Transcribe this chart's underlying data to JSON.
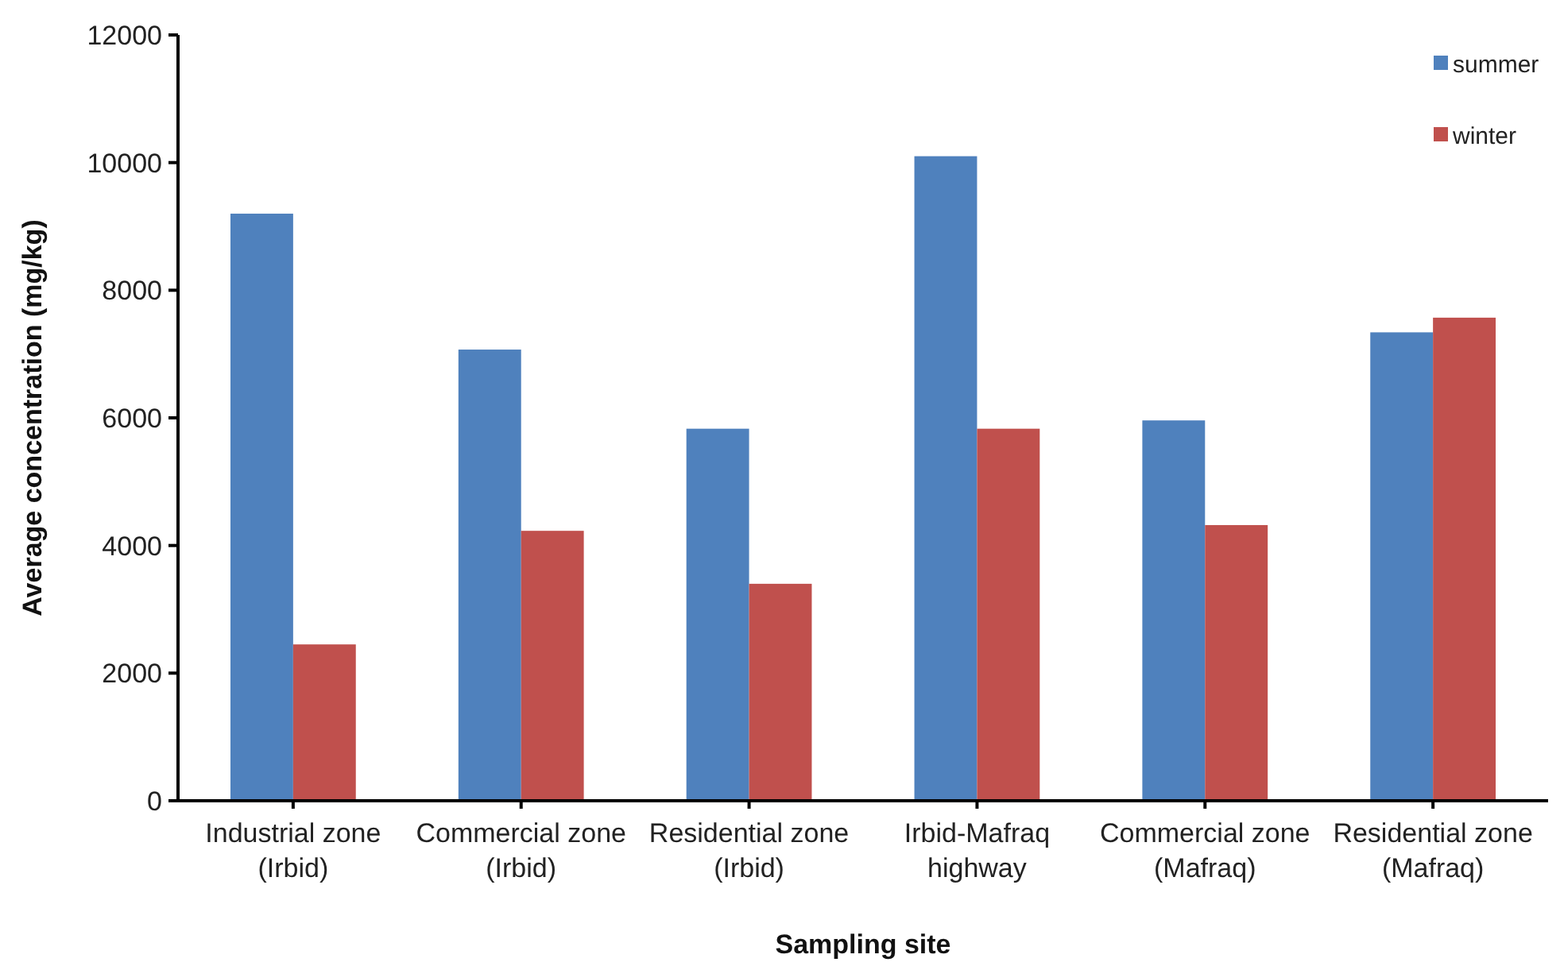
{
  "chart_data": {
    "type": "bar",
    "xlabel": "Sampling site",
    "ylabel": "Average concentration (mg/kg)",
    "categories": [
      "Industrial zone (Irbid)",
      "Commercial zone (Irbid)",
      "Residential zone (Irbid)",
      "Irbid-Mafraq highway",
      "Commercial zone (Mafraq)",
      "Residential zone (Mafraq)"
    ],
    "series": [
      {
        "name": "summer",
        "color": "#4f81bd",
        "values": [
          9200,
          7070,
          5830,
          10100,
          5960,
          7340
        ]
      },
      {
        "name": "winter",
        "color": "#c0504d",
        "values": [
          2450,
          4230,
          3400,
          5830,
          4320,
          7570
        ]
      }
    ],
    "ylim": [
      0,
      12000
    ],
    "yticks": [
      0,
      2000,
      4000,
      6000,
      8000,
      10000,
      12000
    ],
    "grid": false,
    "legend": "top right"
  }
}
